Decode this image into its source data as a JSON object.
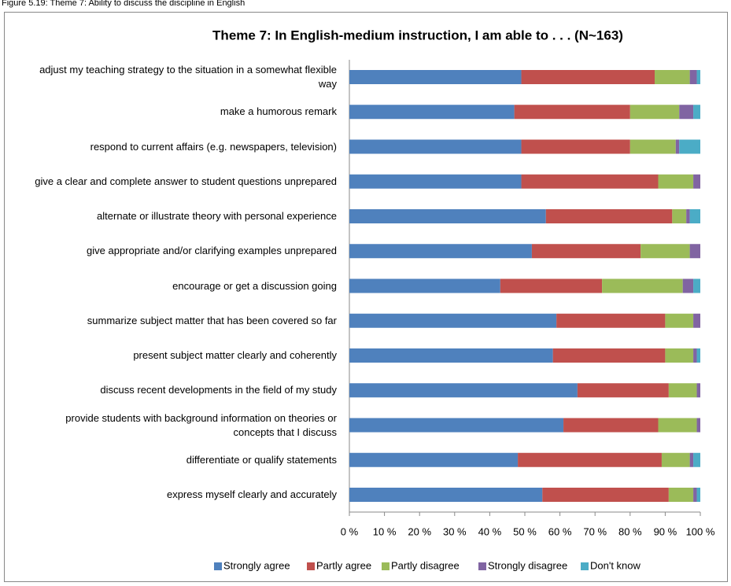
{
  "caption": "Figure 5.19: Theme 7: Ability to discuss the discipline in English",
  "chart_data": {
    "type": "bar",
    "orientation": "horizontal",
    "stacked": true,
    "title": "Theme 7: In English-medium instruction, I am able to . . .  (N~163)",
    "categories": [
      "adjust my teaching strategy to the situation in a somewhat flexible way",
      "make a humorous remark",
      "respond to current affairs (e.g. newspapers, television)",
      "give a clear and complete answer to student questions unprepared",
      "alternate or illustrate theory with personal experience",
      "give appropriate and/or clarifying examples unprepared",
      "encourage or get a discussion going",
      "summarize subject matter that has been covered so far",
      "present subject matter clearly and coherently",
      "discuss recent developments in the field of my study",
      "provide students with background information on theories or concepts that I discuss",
      "differentiate or qualify statements",
      "express myself clearly and accurately"
    ],
    "series": [
      {
        "name": "Strongly agree",
        "color": "#4f81bd",
        "values": [
          49,
          47,
          49,
          49,
          56,
          52,
          43,
          59,
          58,
          65,
          61,
          48,
          55
        ]
      },
      {
        "name": "Partly agree",
        "color": "#c0504d",
        "values": [
          38,
          33,
          31,
          39,
          36,
          31,
          29,
          31,
          32,
          26,
          27,
          41,
          36
        ]
      },
      {
        "name": "Partly disagree",
        "color": "#9bbb59",
        "values": [
          10,
          14,
          13,
          10,
          4,
          14,
          23,
          8,
          8,
          8,
          11,
          8,
          7
        ]
      },
      {
        "name": "Strongly disagree",
        "color": "#8064a2",
        "values": [
          2,
          4,
          1,
          2,
          1,
          3,
          3,
          2,
          1,
          1,
          1,
          1,
          1
        ]
      },
      {
        "name": "Don't know",
        "color": "#4bacc6",
        "values": [
          1,
          2,
          6,
          0,
          3,
          0,
          2,
          0,
          1,
          0,
          0,
          2,
          1
        ]
      }
    ],
    "xlim": [
      0,
      100
    ],
    "xticks": [
      {
        "value": 0,
        "label": "0 %"
      },
      {
        "value": 10,
        "label": "10 %"
      },
      {
        "value": 20,
        "label": "20 %"
      },
      {
        "value": 30,
        "label": "30 %"
      },
      {
        "value": 40,
        "label": "40 %"
      },
      {
        "value": 50,
        "label": "50 %"
      },
      {
        "value": 60,
        "label": "60 %"
      },
      {
        "value": 70,
        "label": "70 %"
      },
      {
        "value": 80,
        "label": "80 %"
      },
      {
        "value": 90,
        "label": "90 %"
      },
      {
        "value": 100,
        "label": "100 %"
      }
    ],
    "legend": "bottom"
  }
}
